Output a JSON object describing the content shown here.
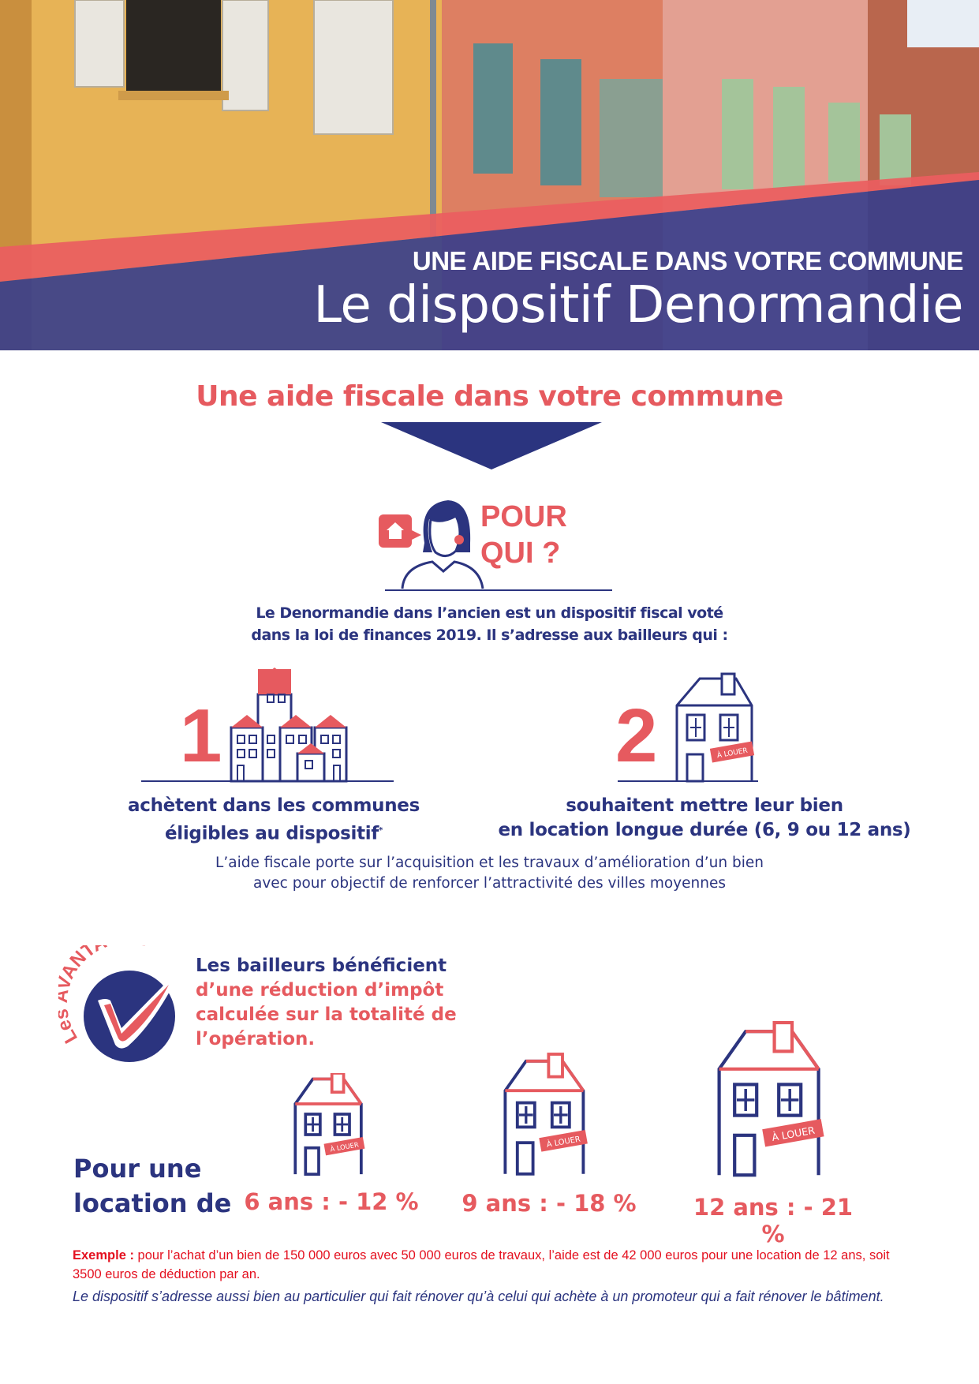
{
  "header": {
    "kicker": "UNE AIDE FISCALE DANS VOTRE COMMUNE",
    "title": "Le dispositif Denormandie"
  },
  "subtitle": "Une aide fiscale dans votre commune",
  "pour_qui": {
    "line1": "POUR",
    "line2": "QUI ?"
  },
  "intro": {
    "line1": "Le Denormandie dans l’ancien est un dispositif fiscal voté",
    "line2": "dans la loi de finances 2019. Il s’adresse aux bailleurs qui :"
  },
  "items": [
    {
      "number": "1",
      "line1": "achètent dans les communes",
      "line2": "éligibles au dispositif",
      "sup": "*"
    },
    {
      "number": "2",
      "line1": "souhaitent mettre leur bien",
      "line2": "en location longue durée (6, 9 ou 12 ans)",
      "badge": "À LOUER"
    }
  ],
  "note": {
    "line1": "L’aide fiscale porte sur l’acquisition et les travaux d’amélioration d’un bien",
    "line2": "avec pour objectif de renforcer l’attractivité des villes moyennes"
  },
  "avantages": {
    "badge_small": "Les",
    "badge_big": "AVANTAGES",
    "line1": "Les bailleurs bénéficient",
    "line2": "d’une réduction d’impôt",
    "line3": "calculée sur la totalité de",
    "line4": "l’opération."
  },
  "location": {
    "label1": "Pour une",
    "label2": "location de",
    "badge": "À LOUER",
    "rates": [
      "6 ans : - 12 %",
      "9 ans : - 18 %",
      "12 ans : - 21 %"
    ]
  },
  "example": {
    "label": "Exemple :",
    "text": " pour l’achat d’un bien de 150 000 euros avec 50 000 euros de travaux, l’aide est de 42 000 euros pour une location de 12 ans, soit 3500 euros de déduction par an.",
    "footer": "Le dispositif s’adresse aussi bien au particulier qui fait rénover qu’à celui qui achète à un promoteur qui a fait rénover le bâtiment."
  },
  "colors": {
    "navy": "#2b347f",
    "red": "#e65a5f",
    "example_red": "#e4101f"
  }
}
